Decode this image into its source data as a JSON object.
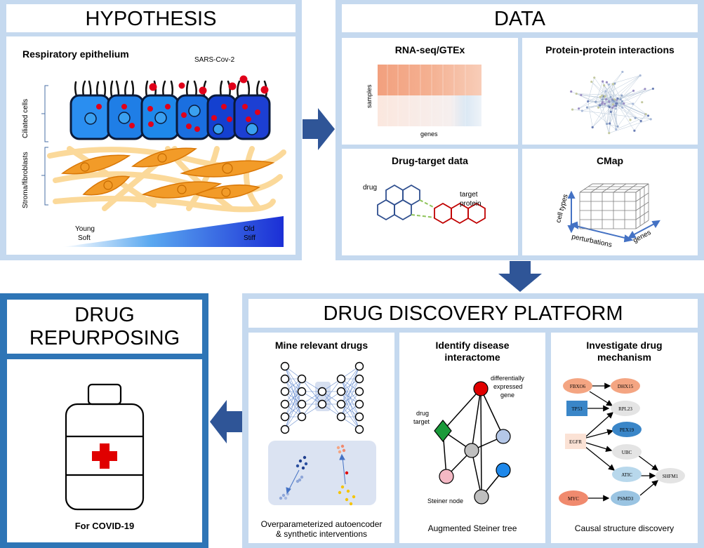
{
  "hypothesis": {
    "title": "HYPOTHESIS",
    "subtitle": "Respiratory epithelium",
    "virus_label": "SARS-Cov-2",
    "ciliated_label": "Ciliated cells",
    "stroma_label": "Stroma/fibroblasts",
    "young_label": "Young",
    "soft_label": "Soft",
    "old_label": "Old",
    "stiff_label": "Stiff"
  },
  "data": {
    "title": "DATA",
    "rnaseq": {
      "title": "RNA-seq/GTEx",
      "ylabel": "samples",
      "xlabel": "genes"
    },
    "ppi": {
      "title": "Protein-protein interactions"
    },
    "drugtarget": {
      "title": "Drug-target data",
      "drug_label": "drug",
      "target_label_1": "target",
      "target_label_2": "protein"
    },
    "cmap": {
      "title": "CMap",
      "cell_types": "cell types",
      "perturbations": "perturbations",
      "genes": "genes"
    }
  },
  "platform": {
    "title": "DRUG DISCOVERY PLATFORM",
    "mine": {
      "title": "Mine relevant drugs",
      "caption_1": "Overparameterized autoencoder",
      "caption_2": "& synthetic interventions"
    },
    "interactome": {
      "title_1": "Identify disease",
      "title_2": "interactome",
      "de_1": "differentially",
      "de_2": "expressed",
      "de_3": "gene",
      "drug_target_1": "drug",
      "drug_target_2": "target",
      "steiner_node": "Steiner node",
      "caption": "Augmented Steiner tree"
    },
    "mechanism": {
      "title_1": "Investigate drug",
      "title_2": "mechanism",
      "caption": "Causal structure discovery",
      "nodes": {
        "fbxo6": "FBXO6",
        "dhx15": "DHX15",
        "tp53": "TP53",
        "rpl23": "RPL23",
        "pex19": "PEX19",
        "egfr": "EGFR",
        "ubc": "UBC",
        "atic": "ATIC",
        "shfm1": "SHFM1",
        "myc": "MYC",
        "psmd3": "PSMD3"
      }
    }
  },
  "repurposing": {
    "title_1": "DRUG",
    "title_2": "REPURPOSING",
    "caption": "For COVID-19"
  },
  "colors": {
    "light_frame": "#c5d9ef",
    "dark_frame": "#2e75b6",
    "arrow": "#2f5597",
    "cell_blue": "#1a7fe0",
    "fibro_orange": "#f5a623",
    "red_cross": "#e00000"
  }
}
